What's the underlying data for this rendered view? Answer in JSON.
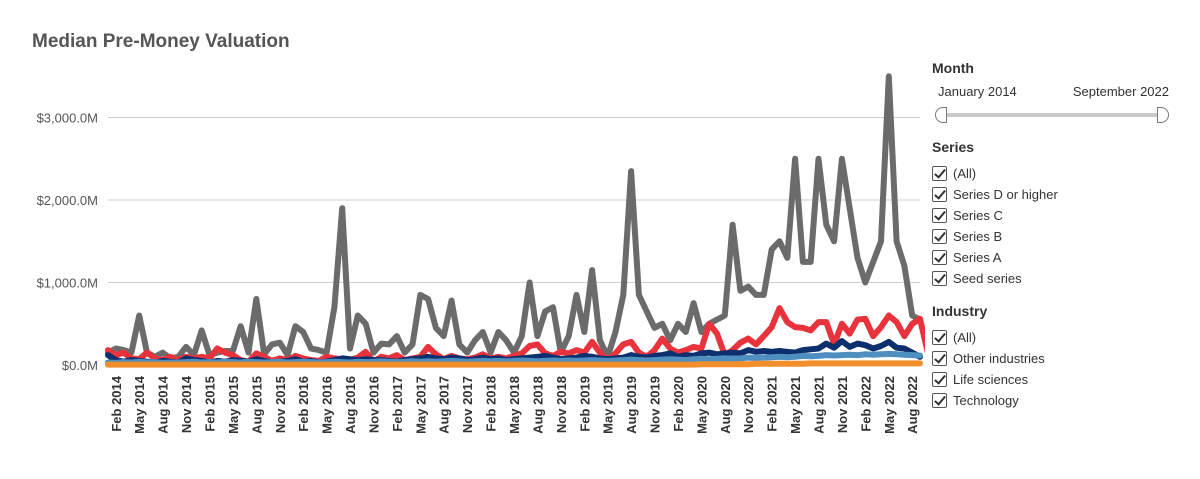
{
  "chart_data": {
    "type": "line",
    "title": "Median Pre-Money Valuation",
    "y_ticks": [
      "$0.0M",
      "$1,000.0M",
      "$2,000.0M",
      "$3,000.0M"
    ],
    "ylim": [
      0,
      3600
    ],
    "grid": true,
    "x_tick_labels": [
      "Feb 2014",
      "May 2014",
      "Aug 2014",
      "Nov 2014",
      "Feb 2015",
      "May 2015",
      "Aug 2015",
      "Nov 2015",
      "Feb 2016",
      "May 2016",
      "Aug 2016",
      "Nov 2016",
      "Feb 2017",
      "May 2017",
      "Aug 2017",
      "Nov 2017",
      "Feb 2018",
      "May 2018",
      "Aug 2018",
      "Nov 2018",
      "Feb 2019",
      "May 2019",
      "Aug 2019",
      "Nov 2019",
      "Feb 2020",
      "May 2020",
      "Aug 2020",
      "Nov 2020",
      "Feb 2021",
      "May 2021",
      "Aug 2021",
      "Nov 2021",
      "Feb 2022",
      "May 2022",
      "Aug 2022"
    ],
    "x_start": "Jan 2014",
    "series": [
      {
        "color": "#6b6b6b",
        "values": [
          150,
          200,
          180,
          150,
          600,
          150,
          100,
          150,
          80,
          100,
          220,
          120,
          420,
          120,
          150,
          170,
          170,
          470,
          150,
          800,
          130,
          250,
          270,
          120,
          470,
          400,
          200,
          180,
          150,
          700,
          1900,
          200,
          600,
          500,
          150,
          260,
          250,
          350,
          150,
          250,
          850,
          800,
          450,
          350,
          780,
          250,
          150,
          300,
          400,
          150,
          400,
          300,
          150,
          350,
          1000,
          350,
          650,
          700,
          150,
          350,
          850,
          400,
          1150,
          300,
          100,
          400,
          850,
          2350,
          850,
          650,
          450,
          500,
          300,
          500,
          400,
          750,
          400,
          500,
          550,
          600,
          1700,
          900,
          950,
          850,
          850,
          1400,
          1500,
          1300,
          2500,
          1250,
          1250,
          2500,
          1700,
          1500,
          2500,
          1900,
          1300,
          1000,
          1250,
          1500,
          3500,
          1500,
          1200,
          600,
          550
        ]
      },
      {
        "color": "#e8333c",
        "values": [
          180,
          120,
          150,
          80,
          70,
          150,
          80,
          60,
          100,
          60,
          100,
          80,
          100,
          80,
          200,
          150,
          120,
          60,
          40,
          140,
          100,
          50,
          80,
          60,
          110,
          80,
          60,
          50,
          100,
          80,
          70,
          60,
          90,
          160,
          40,
          100,
          80,
          120,
          60,
          80,
          100,
          220,
          130,
          70,
          110,
          80,
          70,
          90,
          130,
          80,
          100,
          80,
          110,
          140,
          230,
          250,
          140,
          110,
          160,
          140,
          180,
          150,
          280,
          150,
          60,
          140,
          250,
          280,
          150,
          100,
          180,
          320,
          200,
          150,
          180,
          220,
          200,
          500,
          380,
          120,
          180,
          270,
          320,
          250,
          350,
          460,
          690,
          520,
          460,
          450,
          420,
          520,
          520,
          250,
          500,
          380,
          550,
          560,
          350,
          460,
          600,
          520,
          350,
          500,
          560,
          150,
          110
        ]
      },
      {
        "color": "#0d2f6e",
        "values": [
          120,
          60,
          40,
          60,
          50,
          40,
          30,
          50,
          40,
          30,
          80,
          60,
          50,
          30,
          50,
          40,
          60,
          50,
          40,
          70,
          50,
          30,
          40,
          50,
          70,
          40,
          50,
          30,
          40,
          60,
          80,
          70,
          60,
          70,
          60,
          60,
          50,
          40,
          60,
          70,
          80,
          100,
          80,
          70,
          90,
          80,
          60,
          70,
          90,
          70,
          80,
          60,
          70,
          80,
          90,
          100,
          110,
          90,
          70,
          80,
          90,
          110,
          100,
          80,
          70,
          80,
          90,
          120,
          100,
          90,
          110,
          120,
          140,
          100,
          120,
          110,
          140,
          150,
          130,
          140,
          150,
          140,
          180,
          160,
          170,
          160,
          170,
          160,
          150,
          180,
          190,
          200,
          260,
          210,
          290,
          220,
          260,
          240,
          200,
          230,
          280,
          210,
          200,
          150,
          100
        ]
      },
      {
        "color": "#4f8fc0",
        "values": [
          30,
          25,
          35,
          30,
          40,
          30,
          35,
          25,
          30,
          30,
          35,
          40,
          30,
          35,
          30,
          40,
          35,
          30,
          40,
          35,
          30,
          35,
          40,
          30,
          35,
          40,
          35,
          30,
          35,
          40,
          35,
          30,
          40,
          35,
          40,
          45,
          40,
          35,
          40,
          45,
          40,
          45,
          40,
          45,
          50,
          45,
          40,
          45,
          50,
          45,
          50,
          45,
          50,
          55,
          50,
          45,
          50,
          55,
          50,
          55,
          50,
          55,
          60,
          55,
          50,
          55,
          60,
          65,
          60,
          55,
          60,
          65,
          70,
          65,
          60,
          70,
          75,
          70,
          75,
          80,
          75,
          80,
          90,
          85,
          90,
          95,
          100,
          95,
          100,
          110,
          105,
          110,
          120,
          115,
          120,
          125,
          120,
          130,
          125,
          130,
          135,
          130,
          125,
          120,
          115
        ]
      },
      {
        "color": "#f28e2b",
        "values": [
          5,
          5,
          5,
          5,
          5,
          5,
          5,
          5,
          5,
          5,
          5,
          5,
          5,
          5,
          5,
          5,
          5,
          5,
          5,
          5,
          5,
          5,
          5,
          5,
          5,
          5,
          5,
          5,
          5,
          5,
          5,
          5,
          5,
          5,
          5,
          5,
          5,
          5,
          5,
          5,
          5,
          5,
          5,
          5,
          5,
          5,
          5,
          5,
          5,
          5,
          5,
          5,
          5,
          5,
          5,
          5,
          5,
          5,
          5,
          5,
          5,
          5,
          5,
          5,
          5,
          5,
          5,
          5,
          5,
          5,
          5,
          5,
          5,
          5,
          5,
          5,
          10,
          10,
          10,
          10,
          10,
          10,
          10,
          15,
          15,
          15,
          15,
          15,
          15,
          15,
          20,
          20,
          20,
          20,
          20,
          20,
          20,
          20,
          20,
          20,
          20,
          20,
          20,
          20,
          20
        ]
      }
    ]
  },
  "filters": {
    "month": {
      "heading": "Month",
      "start_label": "January 2014",
      "end_label": "September 2022"
    },
    "series": {
      "heading": "Series",
      "items": [
        "(All)",
        "Series D or higher",
        "Series C",
        "Series B",
        "Series A",
        "Seed series"
      ]
    },
    "industry": {
      "heading": "Industry",
      "items": [
        "(All)",
        "Other industries",
        "Life sciences",
        "Technology"
      ]
    }
  }
}
